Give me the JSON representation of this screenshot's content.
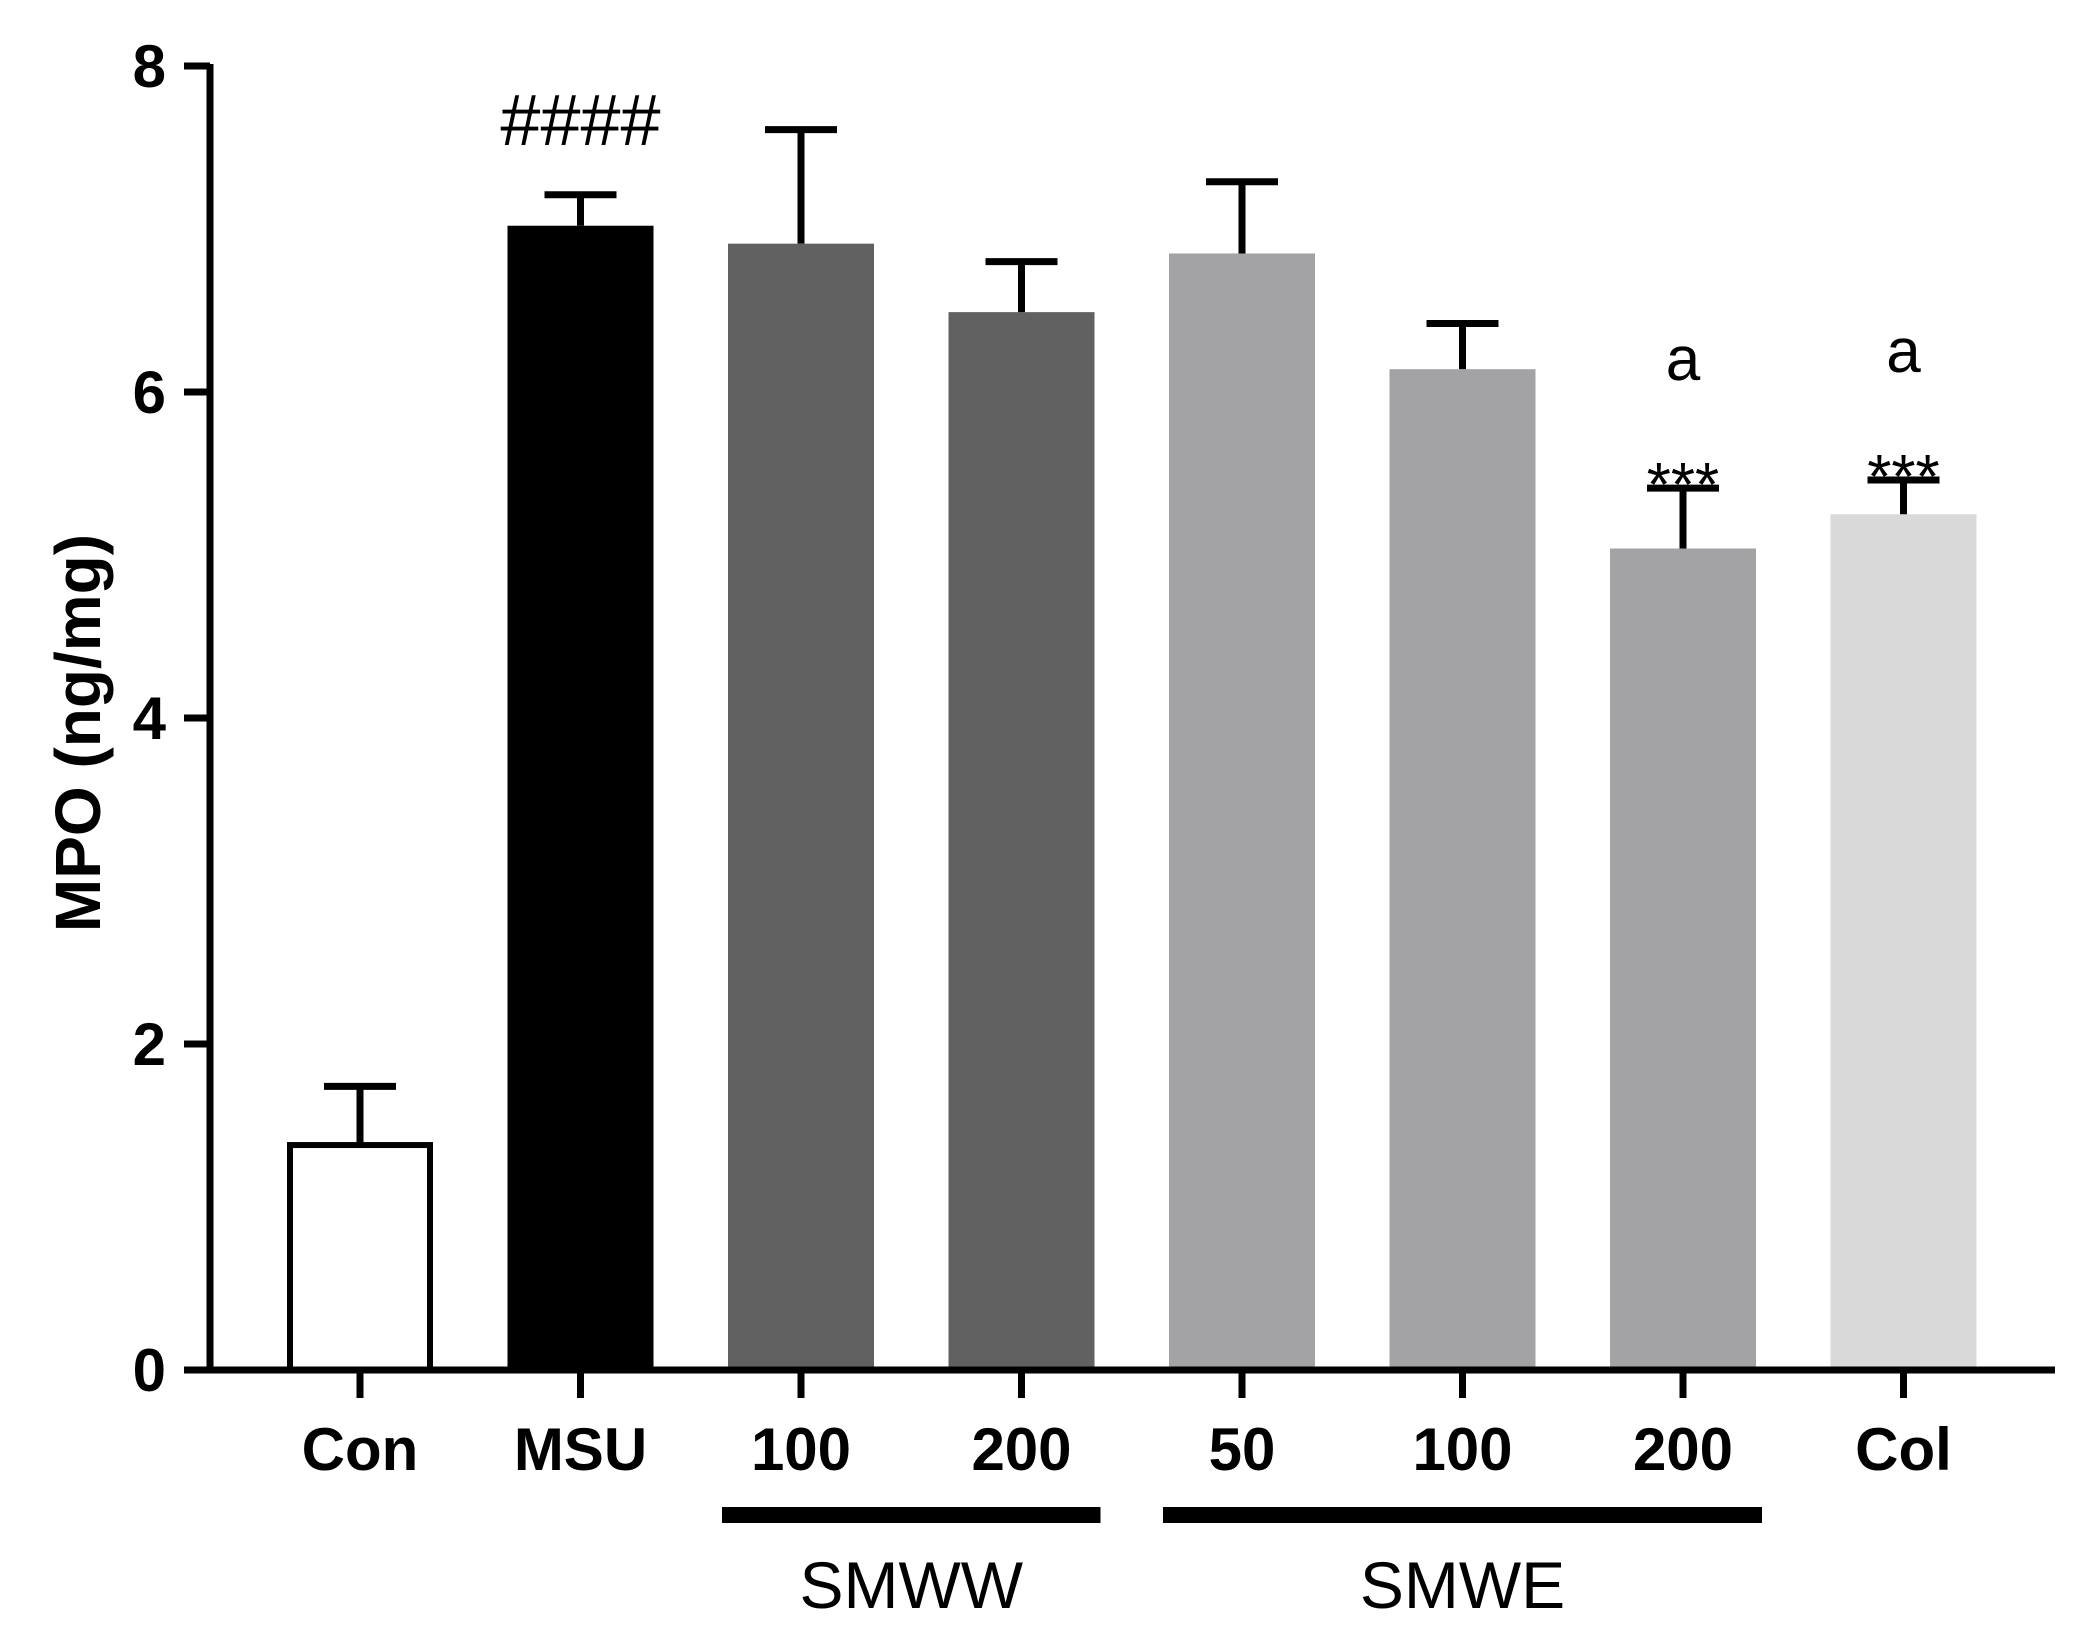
{
  "chart_data": {
    "type": "bar",
    "title": "",
    "xlabel": "",
    "ylabel": "MPO (ng/mg)",
    "ylim": [
      0,
      8
    ],
    "yticks": [
      "0",
      "2",
      "4",
      "6",
      "8"
    ],
    "grid": false,
    "categories": [
      "Con",
      "MSU",
      "100",
      "200",
      "50",
      "100",
      "200",
      "Col"
    ],
    "values": [
      1.38,
      7.02,
      6.91,
      6.49,
      6.85,
      6.14,
      5.04,
      5.25
    ],
    "errors": [
      0.36,
      0.19,
      0.7,
      0.31,
      0.44,
      0.28,
      0.37,
      0.21
    ],
    "colors": [
      "#ffffff",
      "#000000",
      "#616161",
      "#616161",
      "#a3a3a5",
      "#a3a3a5",
      "#a3a3a5",
      "#d9d9d9"
    ],
    "groups": [
      {
        "label": "SMWW",
        "from": 2,
        "to": 3
      },
      {
        "label": "SMWE",
        "from": 4,
        "to": 6
      }
    ],
    "annotations": [
      {
        "bar": 1,
        "lines": [
          "####"
        ]
      },
      {
        "bar": 6,
        "lines": [
          "a",
          "***"
        ]
      },
      {
        "bar": 7,
        "lines": [
          "a",
          "***"
        ]
      }
    ]
  }
}
